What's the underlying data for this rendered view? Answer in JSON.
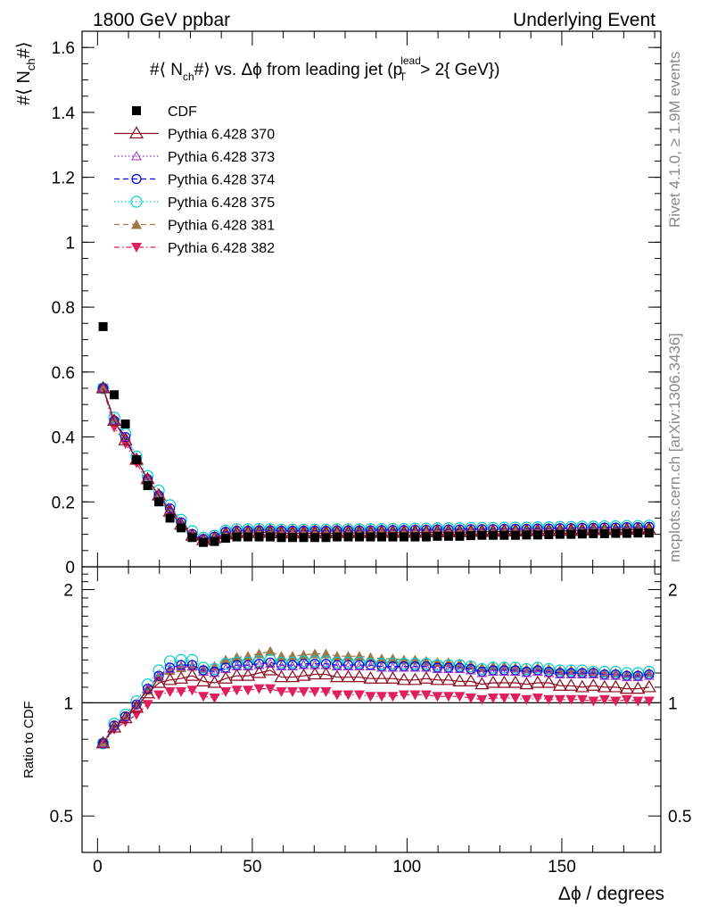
{
  "header": {
    "left": "1800 GeV ppbar",
    "right": "Underlying Event"
  },
  "side": {
    "rivet": "Rivet 4.1.0, ≥ 1.9M events",
    "mcplots": "mcplots.cern.ch [arXiv:1306.3436]"
  },
  "chart_data": [
    {
      "type": "scatter",
      "panel": "main",
      "title": "#⟨ N_ch#⟩ vs. Δϕ from leading jet (p_T^lead > 2{ GeV})",
      "ylabel": "#⟨ N_ch#⟩",
      "xlabel": "",
      "ylim": [
        0,
        1.65
      ],
      "xlim": [
        -5,
        182
      ],
      "yticks": [
        "0",
        "0.2",
        "0.4",
        "0.6",
        "0.8",
        "1",
        "1.2",
        "1.4",
        "1.6"
      ],
      "x": [
        1.8,
        5.4,
        9.0,
        12.6,
        16.2,
        19.8,
        23.4,
        27.0,
        30.6,
        34.2,
        37.8,
        41.4,
        45.0,
        48.6,
        52.2,
        55.8,
        59.4,
        63.0,
        66.6,
        70.2,
        73.8,
        77.4,
        81.0,
        84.6,
        88.2,
        91.8,
        95.4,
        99.0,
        102.6,
        106.2,
        109.8,
        113.4,
        117.0,
        120.6,
        124.2,
        127.8,
        131.4,
        135.0,
        138.6,
        142.2,
        145.8,
        149.4,
        153.0,
        156.6,
        160.2,
        163.8,
        167.4,
        171.0,
        174.6,
        178.2
      ],
      "series": [
        {
          "name": "CDF",
          "color": "#000000",
          "marker": "square",
          "values": [
            0.74,
            0.53,
            0.44,
            0.33,
            0.25,
            0.2,
            0.15,
            0.12,
            0.09,
            0.075,
            0.078,
            0.088,
            0.092,
            0.092,
            0.092,
            0.092,
            0.09,
            0.09,
            0.09,
            0.09,
            0.09,
            0.092,
            0.092,
            0.092,
            0.092,
            0.092,
            0.092,
            0.092,
            0.092,
            0.092,
            0.094,
            0.094,
            0.094,
            0.096,
            0.097,
            0.097,
            0.097,
            0.097,
            0.098,
            0.098,
            0.099,
            0.1,
            0.1,
            0.101,
            0.102,
            0.102,
            0.103,
            0.103,
            0.104,
            0.104
          ]
        },
        {
          "name": "Pythia 6.428 370",
          "color": "#8b0a1f",
          "marker": "triangle-open",
          "line": "solid",
          "values": [
            0.55,
            0.45,
            0.39,
            0.33,
            0.27,
            0.22,
            0.17,
            0.13,
            0.096,
            0.082,
            0.088,
            0.1,
            0.104,
            0.104,
            0.105,
            0.105,
            0.103,
            0.103,
            0.103,
            0.103,
            0.103,
            0.104,
            0.104,
            0.104,
            0.104,
            0.105,
            0.105,
            0.105,
            0.105,
            0.106,
            0.107,
            0.107,
            0.107,
            0.108,
            0.108,
            0.108,
            0.109,
            0.109,
            0.11,
            0.11,
            0.11,
            0.111,
            0.111,
            0.112,
            0.113,
            0.113,
            0.113,
            0.114,
            0.115,
            0.115
          ]
        },
        {
          "name": "Pythia 6.428 373",
          "color": "#9932cc",
          "marker": "triangle-open-small",
          "line": "dotted",
          "values": [
            0.55,
            0.45,
            0.4,
            0.33,
            0.27,
            0.22,
            0.18,
            0.135,
            0.1,
            0.085,
            0.092,
            0.107,
            0.11,
            0.11,
            0.111,
            0.111,
            0.11,
            0.11,
            0.11,
            0.11,
            0.11,
            0.111,
            0.111,
            0.111,
            0.111,
            0.112,
            0.112,
            0.112,
            0.113,
            0.113,
            0.114,
            0.114,
            0.114,
            0.115,
            0.115,
            0.115,
            0.116,
            0.116,
            0.116,
            0.117,
            0.117,
            0.118,
            0.118,
            0.119,
            0.119,
            0.12,
            0.12,
            0.121,
            0.121,
            0.122
          ]
        },
        {
          "name": "Pythia 6.428 374",
          "color": "#0000dd",
          "marker": "circle-open",
          "line": "dashed",
          "values": [
            0.55,
            0.45,
            0.4,
            0.33,
            0.27,
            0.22,
            0.18,
            0.137,
            0.101,
            0.086,
            0.093,
            0.108,
            0.111,
            0.111,
            0.112,
            0.112,
            0.111,
            0.111,
            0.111,
            0.111,
            0.111,
            0.112,
            0.112,
            0.112,
            0.112,
            0.113,
            0.113,
            0.113,
            0.114,
            0.114,
            0.115,
            0.115,
            0.115,
            0.116,
            0.116,
            0.116,
            0.117,
            0.117,
            0.117,
            0.118,
            0.118,
            0.119,
            0.119,
            0.12,
            0.12,
            0.121,
            0.121,
            0.122,
            0.122,
            0.123
          ]
        },
        {
          "name": "Pythia 6.428 375",
          "color": "#00cccc",
          "marker": "circle-open-large",
          "line": "dotted",
          "values": [
            0.55,
            0.46,
            0.41,
            0.34,
            0.28,
            0.235,
            0.19,
            0.145,
            0.11,
            0.09,
            0.096,
            0.112,
            0.116,
            0.116,
            0.117,
            0.116,
            0.115,
            0.115,
            0.115,
            0.115,
            0.115,
            0.116,
            0.116,
            0.116,
            0.116,
            0.117,
            0.117,
            0.117,
            0.118,
            0.118,
            0.119,
            0.119,
            0.119,
            0.12,
            0.12,
            0.12,
            0.121,
            0.121,
            0.121,
            0.122,
            0.122,
            0.123,
            0.123,
            0.124,
            0.124,
            0.125,
            0.125,
            0.126,
            0.126,
            0.127
          ]
        },
        {
          "name": "Pythia 6.428 381",
          "color": "#a07848",
          "marker": "triangle-filled",
          "line": "dashed",
          "values": [
            0.55,
            0.45,
            0.4,
            0.33,
            0.27,
            0.22,
            0.18,
            0.138,
            0.101,
            0.087,
            0.095,
            0.112,
            0.116,
            0.117,
            0.119,
            0.119,
            0.117,
            0.117,
            0.117,
            0.117,
            0.117,
            0.118,
            0.118,
            0.118,
            0.117,
            0.117,
            0.117,
            0.117,
            0.118,
            0.117,
            0.118,
            0.118,
            0.117,
            0.118,
            0.118,
            0.118,
            0.119,
            0.119,
            0.119,
            0.12,
            0.12,
            0.12,
            0.121,
            0.121,
            0.122,
            0.122,
            0.122,
            0.123,
            0.123,
            0.124
          ]
        },
        {
          "name": "Pythia 6.428 382",
          "color": "#e0205a",
          "marker": "triangle-down-filled",
          "line": "dashdot",
          "values": [
            0.55,
            0.43,
            0.38,
            0.32,
            0.26,
            0.21,
            0.165,
            0.125,
            0.093,
            0.078,
            0.081,
            0.094,
            0.097,
            0.097,
            0.098,
            0.098,
            0.096,
            0.096,
            0.096,
            0.096,
            0.096,
            0.097,
            0.097,
            0.097,
            0.096,
            0.096,
            0.096,
            0.097,
            0.097,
            0.097,
            0.098,
            0.098,
            0.098,
            0.099,
            0.099,
            0.1,
            0.1,
            0.1,
            0.1,
            0.101,
            0.101,
            0.102,
            0.102,
            0.103,
            0.103,
            0.104,
            0.104,
            0.105,
            0.105,
            0.105
          ]
        }
      ]
    },
    {
      "type": "scatter",
      "panel": "ratio",
      "ylabel": "Ratio to CDF",
      "xlabel": "Δϕ / degrees",
      "ylim": [
        0.4,
        2.3
      ],
      "yscale": "log",
      "yticks": [
        "0.5",
        "1",
        "2"
      ],
      "xticks": [
        "0",
        "50",
        "100",
        "150"
      ],
      "reference": 1.0,
      "series_ratio": [
        {
          "name": "Pythia 6.428 370",
          "values": [
            0.78,
            0.86,
            0.91,
            0.97,
            1.06,
            1.13,
            1.15,
            1.16,
            1.18,
            1.14,
            1.13,
            1.16,
            1.18,
            1.18,
            1.2,
            1.22,
            1.17,
            1.17,
            1.18,
            1.19,
            1.19,
            1.17,
            1.17,
            1.17,
            1.16,
            1.16,
            1.16,
            1.15,
            1.15,
            1.16,
            1.15,
            1.15,
            1.14,
            1.14,
            1.12,
            1.13,
            1.13,
            1.13,
            1.12,
            1.13,
            1.13,
            1.11,
            1.11,
            1.1,
            1.11,
            1.1,
            1.1,
            1.09,
            1.09,
            1.1
          ]
        },
        {
          "name": "Pythia 6.428 373",
          "values": [
            0.78,
            0.87,
            0.92,
            0.99,
            1.09,
            1.18,
            1.23,
            1.25,
            1.25,
            1.21,
            1.2,
            1.23,
            1.25,
            1.25,
            1.26,
            1.27,
            1.25,
            1.25,
            1.26,
            1.26,
            1.26,
            1.25,
            1.25,
            1.25,
            1.25,
            1.24,
            1.24,
            1.24,
            1.24,
            1.24,
            1.23,
            1.23,
            1.23,
            1.22,
            1.2,
            1.21,
            1.21,
            1.21,
            1.2,
            1.21,
            1.2,
            1.19,
            1.19,
            1.19,
            1.19,
            1.18,
            1.18,
            1.17,
            1.17,
            1.18
          ]
        },
        {
          "name": "Pythia 6.428 374",
          "values": [
            0.78,
            0.87,
            0.92,
            0.99,
            1.09,
            1.18,
            1.24,
            1.26,
            1.26,
            1.22,
            1.21,
            1.24,
            1.26,
            1.26,
            1.27,
            1.28,
            1.26,
            1.26,
            1.27,
            1.27,
            1.27,
            1.26,
            1.26,
            1.26,
            1.26,
            1.25,
            1.25,
            1.25,
            1.25,
            1.25,
            1.24,
            1.24,
            1.24,
            1.23,
            1.21,
            1.22,
            1.22,
            1.22,
            1.21,
            1.22,
            1.21,
            1.2,
            1.2,
            1.2,
            1.2,
            1.19,
            1.19,
            1.18,
            1.18,
            1.19
          ]
        },
        {
          "name": "Pythia 6.428 375",
          "values": [
            0.78,
            0.88,
            0.93,
            1.01,
            1.12,
            1.22,
            1.29,
            1.3,
            1.3,
            1.24,
            1.23,
            1.27,
            1.28,
            1.28,
            1.29,
            1.3,
            1.28,
            1.28,
            1.29,
            1.29,
            1.29,
            1.28,
            1.28,
            1.28,
            1.27,
            1.27,
            1.27,
            1.27,
            1.27,
            1.27,
            1.26,
            1.26,
            1.26,
            1.25,
            1.23,
            1.24,
            1.24,
            1.24,
            1.23,
            1.24,
            1.23,
            1.22,
            1.22,
            1.22,
            1.21,
            1.21,
            1.21,
            1.2,
            1.2,
            1.21
          ]
        },
        {
          "name": "Pythia 6.428 381",
          "values": [
            0.78,
            0.87,
            0.92,
            0.99,
            1.08,
            1.17,
            1.22,
            1.24,
            1.25,
            1.23,
            1.25,
            1.3,
            1.32,
            1.33,
            1.35,
            1.37,
            1.33,
            1.33,
            1.34,
            1.35,
            1.35,
            1.33,
            1.33,
            1.33,
            1.32,
            1.31,
            1.31,
            1.3,
            1.3,
            1.29,
            1.28,
            1.28,
            1.27,
            1.26,
            1.24,
            1.25,
            1.25,
            1.24,
            1.23,
            1.24,
            1.23,
            1.22,
            1.22,
            1.21,
            1.21,
            1.2,
            1.2,
            1.19,
            1.19,
            1.2
          ]
        },
        {
          "name": "Pythia 6.428 382",
          "values": [
            0.78,
            0.85,
            0.89,
            0.93,
            0.99,
            1.05,
            1.07,
            1.07,
            1.08,
            1.04,
            1.03,
            1.07,
            1.08,
            1.08,
            1.09,
            1.09,
            1.07,
            1.07,
            1.07,
            1.07,
            1.07,
            1.05,
            1.05,
            1.05,
            1.04,
            1.04,
            1.04,
            1.05,
            1.05,
            1.05,
            1.04,
            1.04,
            1.04,
            1.03,
            1.02,
            1.03,
            1.03,
            1.03,
            1.02,
            1.03,
            1.02,
            1.02,
            1.02,
            1.02,
            1.01,
            1.02,
            1.01,
            1.02,
            1.01,
            1.01
          ]
        }
      ]
    }
  ]
}
